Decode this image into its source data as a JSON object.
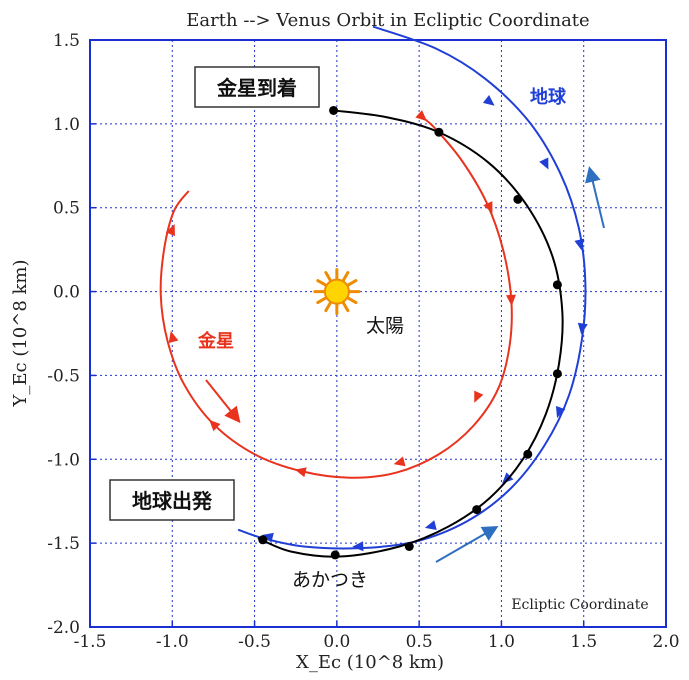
{
  "chart_data": {
    "type": "line",
    "title": "Earth --> Venus Orbit in Ecliptic Coordinate",
    "xlabel": "X_Ec  (10^8 km)",
    "ylabel": "Y_Ec  (10^8 km)",
    "xlim": [
      -1.5,
      2.0
    ],
    "ylim": [
      -2.0,
      1.5
    ],
    "xticks": [
      "-1.5",
      "-1.0",
      "-0.5",
      "0.0",
      "0.5",
      "1.0",
      "1.5",
      "2.0"
    ],
    "yticks": [
      "-2.0",
      "-1.5",
      "-1.0",
      "-0.5",
      "0.0",
      "0.5",
      "1.0",
      "1.5"
    ],
    "grid": true,
    "annotations": {
      "arrival": "金星到着",
      "departure": "地球出発",
      "earth": "地球",
      "venus": "金星",
      "sun": "太陽",
      "akatsuki": "あかつき",
      "corner": "Ecliptic Coordinate"
    },
    "colors": {
      "earth": "#1f3fd6",
      "venus": "#e8331e",
      "akatsuki": "#000000",
      "sun_fill": "#ffd400",
      "sun_rays": "#f08a00",
      "arrow_blue": "#2f6fc0"
    },
    "series": [
      {
        "key": "venus",
        "x": [
          0.52,
          0.6,
          0.76,
          0.91,
          1.01,
          1.06,
          1.05,
          0.98,
          0.83,
          0.62,
          0.36,
          0.08,
          -0.22,
          -0.5,
          -0.75,
          -0.93,
          -1.03,
          -1.07,
          -1.05,
          -0.99,
          -0.9
        ],
        "y": [
          1.04,
          0.97,
          0.78,
          0.53,
          0.25,
          -0.05,
          -0.32,
          -0.58,
          -0.8,
          -0.97,
          -1.08,
          -1.11,
          -1.07,
          -0.97,
          -0.79,
          -0.55,
          -0.29,
          -0.02,
          0.25,
          0.48,
          0.6
        ],
        "markers": [
          [
            0.52,
            1.04
          ],
          [
            0.93,
            0.5
          ],
          [
            1.06,
            -0.05
          ],
          [
            0.85,
            -0.63
          ],
          [
            0.38,
            -1.02
          ],
          [
            -0.22,
            -1.07
          ],
          [
            -0.75,
            -0.79
          ],
          [
            -1.0,
            -0.27
          ],
          [
            -1.0,
            0.37
          ]
        ]
      },
      {
        "key": "earth",
        "x": [
          0.22,
          0.6,
          0.9,
          1.17,
          1.36,
          1.47,
          1.51,
          1.49,
          1.41,
          1.26,
          1.05,
          0.79,
          0.48,
          0.14,
          -0.2,
          -0.45,
          -0.6
        ],
        "y": [
          1.58,
          1.45,
          1.27,
          1.01,
          0.7,
          0.38,
          0.05,
          -0.28,
          -0.62,
          -0.92,
          -1.18,
          -1.37,
          -1.49,
          -1.53,
          -1.52,
          -1.47,
          -1.42
        ],
        "markers": [
          [
            0.93,
            1.13
          ],
          [
            1.27,
            0.76
          ],
          [
            1.48,
            0.28
          ],
          [
            1.49,
            -0.22
          ],
          [
            1.35,
            -0.72
          ],
          [
            1.03,
            -1.12
          ],
          [
            0.57,
            -1.4
          ],
          [
            0.13,
            -1.52
          ],
          [
            -0.42,
            -1.46
          ]
        ]
      },
      {
        "key": "akatsuki",
        "x": [
          -0.02,
          0.3,
          0.62,
          0.92,
          1.15,
          1.31,
          1.37,
          1.35,
          1.27,
          1.13,
          0.93,
          0.68,
          0.38,
          0.02,
          -0.28,
          -0.48
        ],
        "y": [
          1.08,
          1.04,
          0.95,
          0.77,
          0.52,
          0.21,
          -0.12,
          -0.43,
          -0.73,
          -1.0,
          -1.23,
          -1.4,
          -1.52,
          -1.58,
          -1.55,
          -1.47
        ],
        "markers": [
          [
            -0.02,
            1.08
          ],
          [
            0.62,
            0.95
          ],
          [
            1.1,
            0.55
          ],
          [
            1.34,
            0.04
          ],
          [
            1.34,
            -0.49
          ],
          [
            1.16,
            -0.97
          ],
          [
            0.85,
            -1.3
          ],
          [
            0.44,
            -1.52
          ],
          [
            -0.01,
            -1.57
          ],
          [
            -0.45,
            -1.48
          ]
        ]
      }
    ]
  }
}
